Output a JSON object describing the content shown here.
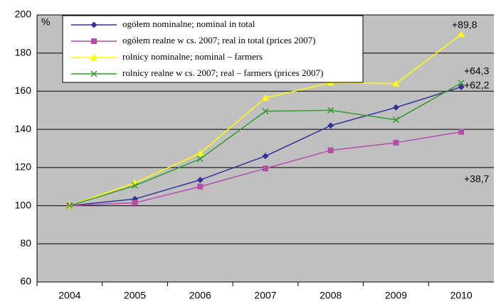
{
  "chart_data": {
    "type": "line",
    "unit": "%",
    "categories": [
      "2004",
      "2005",
      "2006",
      "2007",
      "2008",
      "2009",
      "2010"
    ],
    "series": [
      {
        "name": "ogółem nominalne; nominal in total",
        "color": "#333399",
        "marker": "diamond",
        "values": [
          100,
          103.5,
          113.5,
          126,
          142,
          151.5,
          162.2
        ]
      },
      {
        "name": "ogółem realne w cs. 2007; real in total (prices 2007)",
        "color": "#b44ca8",
        "marker": "square",
        "values": [
          100,
          101.5,
          110,
          119.5,
          129,
          133,
          138.7
        ]
      },
      {
        "name": "rolnicy nominalne; nominal – farmers",
        "color": "#ffff00",
        "marker": "triangle",
        "values": [
          100,
          112,
          127.5,
          156.5,
          164.5,
          164,
          189.8
        ]
      },
      {
        "name": "rolnicy realne w cs. 2007; real – farmers (prices 2007)",
        "color": "#339933",
        "marker": "x",
        "values": [
          100,
          110.5,
          124.5,
          149.5,
          150,
          145,
          164.3
        ]
      }
    ],
    "annotations": [
      "+89,8",
      "+64,3",
      "+62,2",
      "+38,7"
    ],
    "ylim": [
      60,
      200
    ],
    "yticks": [
      60,
      80,
      100,
      120,
      140,
      160,
      180,
      200
    ],
    "grid": true,
    "legend": "top-left"
  }
}
